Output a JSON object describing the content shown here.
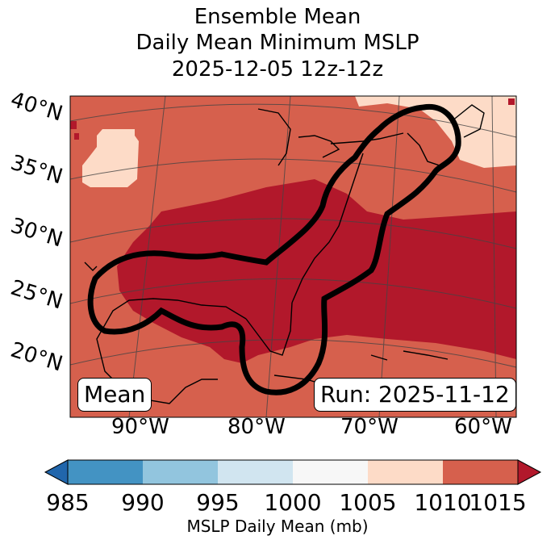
{
  "title": {
    "line1": "Ensemble Mean",
    "line2": "Daily Mean Minimum MSLP",
    "line3": "2025-12-05 12z-12z"
  },
  "map": {
    "lat_labels": [
      "40°N",
      "35°N",
      "30°N",
      "25°N",
      "20°N"
    ],
    "lon_labels": [
      "90°W",
      "80°W",
      "70°W",
      "60°W"
    ],
    "left_box": "Mean",
    "right_box": "Run: 2025-11-12",
    "fill_colors": {
      "low_bin": "#b2182b",
      "mid_bin": "#d6604d",
      "high_bin": "#fddbc7"
    },
    "contour_color": "#000000"
  },
  "colorbar": {
    "ticks": [
      "985",
      "990",
      "995",
      "1000",
      "1005",
      "1010",
      "1015"
    ],
    "label": "MSLP Daily Mean (mb)",
    "colors": [
      "#2166ac",
      "#4393c3",
      "#92c5de",
      "#d1e5f0",
      "#f7f7f7",
      "#fddbc7",
      "#d6604d",
      "#b2182b"
    ]
  }
}
